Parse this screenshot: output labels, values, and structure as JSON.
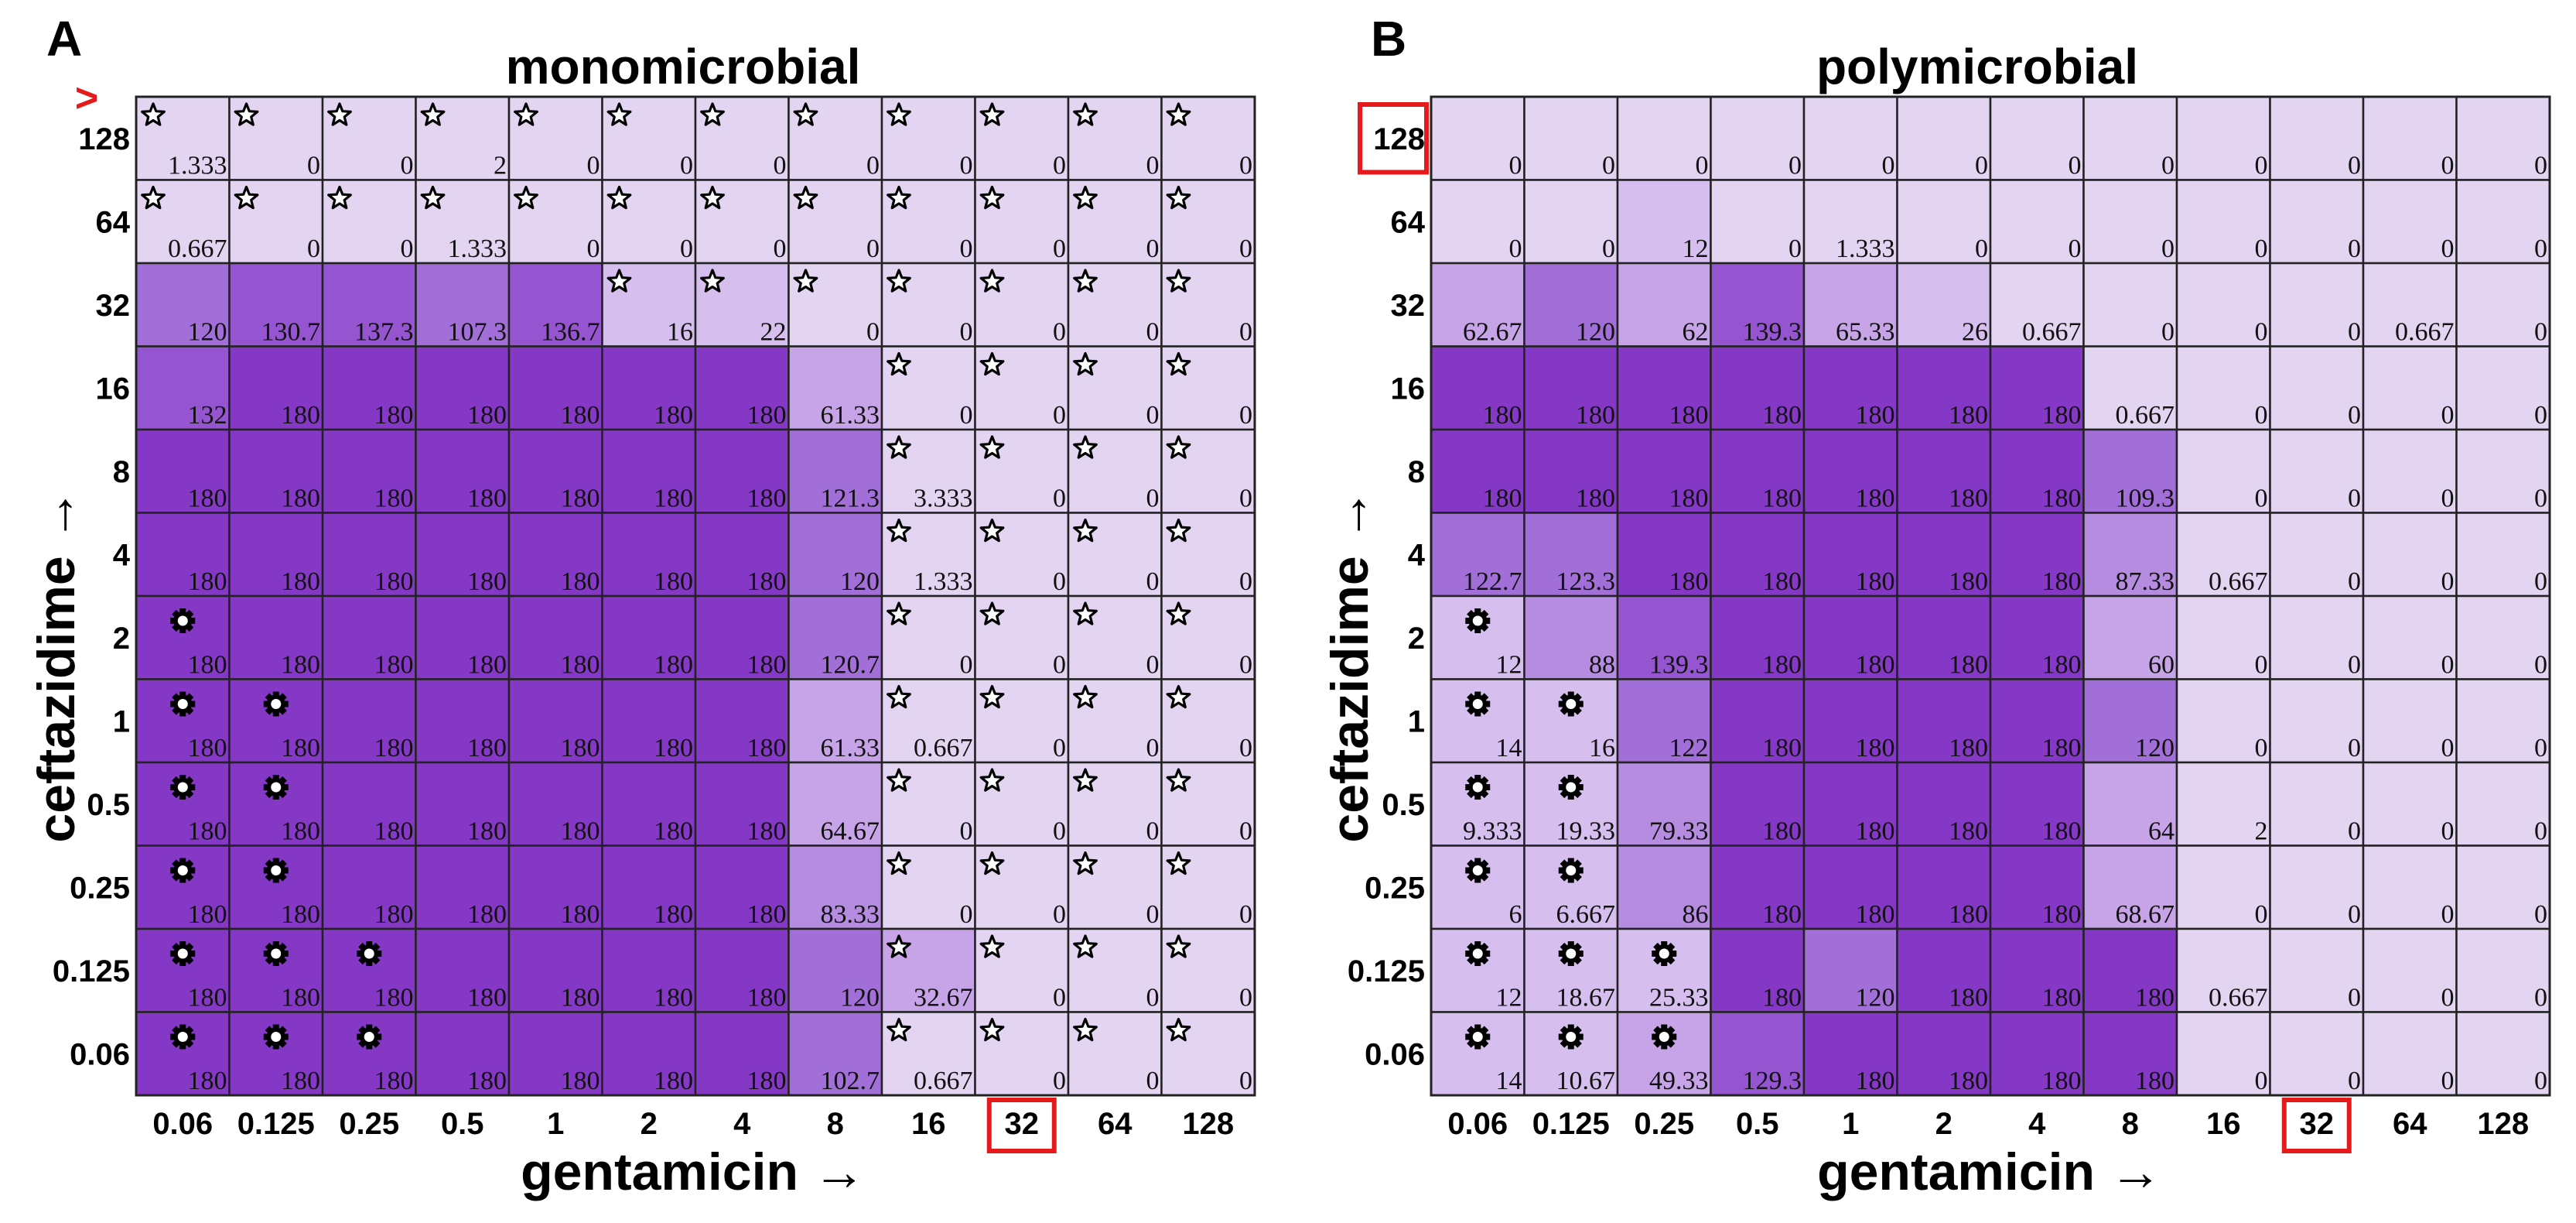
{
  "colors": {
    "level_low": "#e3d4f2",
    "level_1": "#d6bfee",
    "level_2": "#c7a4e7",
    "level_3": "#b68ce0",
    "level_4": "#a26ed8",
    "level_5": "#9554d0",
    "level_max": "#8538c5",
    "highlight": "#e41a1c"
  },
  "chart_data": [
    {
      "type": "heatmap",
      "panel": "A",
      "title": "monomicrobial",
      "xlabel": "gentamicin →",
      "ylabel": "ceftazidime →",
      "x_ticks": [
        "0.06",
        "0.125",
        "0.25",
        "0.5",
        "1",
        "2",
        "4",
        "8",
        "16",
        "32",
        "64",
        "128"
      ],
      "y_ticks": [
        "128",
        "64",
        "32",
        "16",
        "8",
        "4",
        "2",
        "1",
        "0.5",
        "0.25",
        "0.125",
        "0.06"
      ],
      "values": [
        [
          "1.333",
          "0",
          "0",
          "2",
          "0",
          "0",
          "0",
          "0",
          "0",
          "0",
          "0",
          "0"
        ],
        [
          "0.667",
          "0",
          "0",
          "1.333",
          "0",
          "0",
          "0",
          "0",
          "0",
          "0",
          "0",
          "0"
        ],
        [
          "120",
          "130.7",
          "137.3",
          "107.3",
          "136.7",
          "16",
          "22",
          "0",
          "0",
          "0",
          "0",
          "0"
        ],
        [
          "132",
          "180",
          "180",
          "180",
          "180",
          "180",
          "180",
          "61.33",
          "0",
          "0",
          "0",
          "0"
        ],
        [
          "180",
          "180",
          "180",
          "180",
          "180",
          "180",
          "180",
          "121.3",
          "3.333",
          "0",
          "0",
          "0"
        ],
        [
          "180",
          "180",
          "180",
          "180",
          "180",
          "180",
          "180",
          "120",
          "1.333",
          "0",
          "0",
          "0"
        ],
        [
          "180",
          "180",
          "180",
          "180",
          "180",
          "180",
          "180",
          "120.7",
          "0",
          "0",
          "0",
          "0"
        ],
        [
          "180",
          "180",
          "180",
          "180",
          "180",
          "180",
          "180",
          "61.33",
          "0.667",
          "0",
          "0",
          "0"
        ],
        [
          "180",
          "180",
          "180",
          "180",
          "180",
          "180",
          "180",
          "64.67",
          "0",
          "0",
          "0",
          "0"
        ],
        [
          "180",
          "180",
          "180",
          "180",
          "180",
          "180",
          "180",
          "83.33",
          "0",
          "0",
          "0",
          "0"
        ],
        [
          "180",
          "180",
          "180",
          "180",
          "180",
          "180",
          "180",
          "120",
          "32.67",
          "0",
          "0",
          "0"
        ],
        [
          "180",
          "180",
          "180",
          "180",
          "180",
          "180",
          "180",
          "102.7",
          "0.667",
          "0",
          "0",
          "0"
        ]
      ],
      "stars": [
        [
          0,
          0
        ],
        [
          0,
          1
        ],
        [
          0,
          2
        ],
        [
          0,
          3
        ],
        [
          0,
          4
        ],
        [
          0,
          5
        ],
        [
          0,
          6
        ],
        [
          0,
          7
        ],
        [
          0,
          8
        ],
        [
          0,
          9
        ],
        [
          0,
          10
        ],
        [
          0,
          11
        ],
        [
          1,
          0
        ],
        [
          1,
          1
        ],
        [
          1,
          2
        ],
        [
          1,
          3
        ],
        [
          1,
          4
        ],
        [
          1,
          5
        ],
        [
          1,
          6
        ],
        [
          1,
          7
        ],
        [
          1,
          8
        ],
        [
          1,
          9
        ],
        [
          1,
          10
        ],
        [
          1,
          11
        ],
        [
          2,
          5
        ],
        [
          2,
          6
        ],
        [
          2,
          7
        ],
        [
          2,
          8
        ],
        [
          2,
          9
        ],
        [
          2,
          10
        ],
        [
          2,
          11
        ],
        [
          3,
          8
        ],
        [
          3,
          9
        ],
        [
          3,
          10
        ],
        [
          3,
          11
        ],
        [
          4,
          8
        ],
        [
          4,
          9
        ],
        [
          4,
          10
        ],
        [
          4,
          11
        ],
        [
          5,
          8
        ],
        [
          5,
          9
        ],
        [
          5,
          10
        ],
        [
          5,
          11
        ],
        [
          6,
          8
        ],
        [
          6,
          9
        ],
        [
          6,
          10
        ],
        [
          6,
          11
        ],
        [
          7,
          8
        ],
        [
          7,
          9
        ],
        [
          7,
          10
        ],
        [
          7,
          11
        ],
        [
          8,
          8
        ],
        [
          8,
          9
        ],
        [
          8,
          10
        ],
        [
          8,
          11
        ],
        [
          9,
          8
        ],
        [
          9,
          9
        ],
        [
          9,
          10
        ],
        [
          9,
          11
        ],
        [
          10,
          8
        ],
        [
          10,
          9
        ],
        [
          10,
          10
        ],
        [
          10,
          11
        ],
        [
          11,
          8
        ],
        [
          11,
          9
        ],
        [
          11,
          10
        ],
        [
          11,
          11
        ]
      ],
      "gears": [
        [
          6,
          0
        ],
        [
          7,
          0
        ],
        [
          7,
          1
        ],
        [
          8,
          0
        ],
        [
          8,
          1
        ],
        [
          9,
          0
        ],
        [
          9,
          1
        ],
        [
          10,
          0
        ],
        [
          10,
          1
        ],
        [
          10,
          2
        ],
        [
          11,
          0
        ],
        [
          11,
          1
        ],
        [
          11,
          2
        ]
      ],
      "highlight_x_tick": "32",
      "highlight_y_marker": ">"
    },
    {
      "type": "heatmap",
      "panel": "B",
      "title": "polymicrobial",
      "xlabel": "gentamicin →",
      "ylabel": "ceftazidime →",
      "x_ticks": [
        "0.06",
        "0.125",
        "0.25",
        "0.5",
        "1",
        "2",
        "4",
        "8",
        "16",
        "32",
        "64",
        "128"
      ],
      "y_ticks": [
        "128",
        "64",
        "32",
        "16",
        "8",
        "4",
        "2",
        "1",
        "0.5",
        "0.25",
        "0.125",
        "0.06"
      ],
      "values": [
        [
          "0",
          "0",
          "0",
          "0",
          "0",
          "0",
          "0",
          "0",
          "0",
          "0",
          "0",
          "0"
        ],
        [
          "0",
          "0",
          "12",
          "0",
          "1.333",
          "0",
          "0",
          "0",
          "0",
          "0",
          "0",
          "0"
        ],
        [
          "62.67",
          "120",
          "62",
          "139.3",
          "65.33",
          "26",
          "0.667",
          "0",
          "0",
          "0",
          "0.667",
          "0"
        ],
        [
          "180",
          "180",
          "180",
          "180",
          "180",
          "180",
          "180",
          "0.667",
          "0",
          "0",
          "0",
          "0"
        ],
        [
          "180",
          "180",
          "180",
          "180",
          "180",
          "180",
          "180",
          "109.3",
          "0",
          "0",
          "0",
          "0"
        ],
        [
          "122.7",
          "123.3",
          "180",
          "180",
          "180",
          "180",
          "180",
          "87.33",
          "0.667",
          "0",
          "0",
          "0"
        ],
        [
          "12",
          "88",
          "139.3",
          "180",
          "180",
          "180",
          "180",
          "60",
          "0",
          "0",
          "0",
          "0"
        ],
        [
          "14",
          "16",
          "122",
          "180",
          "180",
          "180",
          "180",
          "120",
          "0",
          "0",
          "0",
          "0"
        ],
        [
          "9.333",
          "19.33",
          "79.33",
          "180",
          "180",
          "180",
          "180",
          "64",
          "2",
          "0",
          "0",
          "0"
        ],
        [
          "6",
          "6.667",
          "86",
          "180",
          "180",
          "180",
          "180",
          "68.67",
          "0",
          "0",
          "0",
          "0"
        ],
        [
          "12",
          "18.67",
          "25.33",
          "180",
          "120",
          "180",
          "180",
          "180",
          "0.667",
          "0",
          "0",
          "0"
        ],
        [
          "14",
          "10.67",
          "49.33",
          "129.3",
          "180",
          "180",
          "180",
          "180",
          "0",
          "0",
          "0",
          "0"
        ]
      ],
      "stars": [],
      "gears": [
        [
          6,
          0
        ],
        [
          7,
          0
        ],
        [
          7,
          1
        ],
        [
          8,
          0
        ],
        [
          8,
          1
        ],
        [
          9,
          0
        ],
        [
          9,
          1
        ],
        [
          10,
          0
        ],
        [
          10,
          1
        ],
        [
          10,
          2
        ],
        [
          11,
          0
        ],
        [
          11,
          1
        ],
        [
          11,
          2
        ]
      ],
      "highlight_x_tick": "32",
      "highlight_y_tick": "128"
    }
  ]
}
